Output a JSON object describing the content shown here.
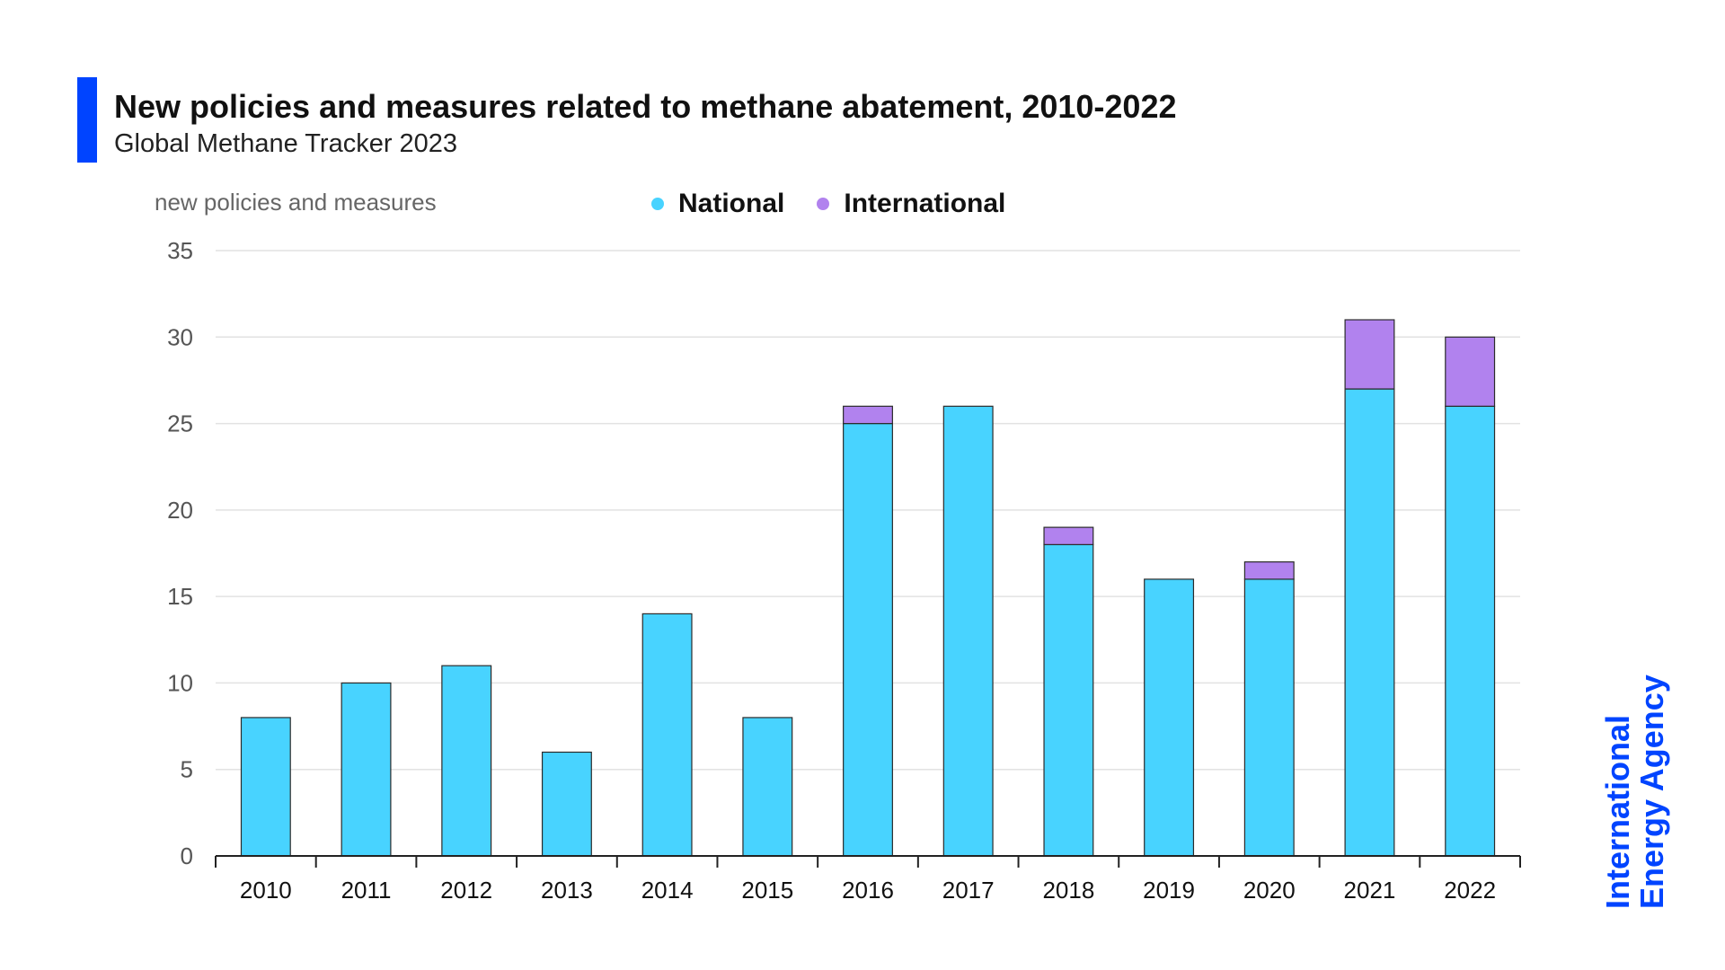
{
  "header": {
    "title": "New policies and measures related to methane abatement, 2010-2022",
    "subtitle": "Global Methane Tracker 2023"
  },
  "logo": {
    "line1": "International",
    "line2": "Energy Agency",
    "color": "#0044ff"
  },
  "chart_data": {
    "type": "bar",
    "stacked": true,
    "title": "New policies and measures related to methane abatement, 2010-2022",
    "ylabel": "new policies and measures",
    "xlabel": "",
    "categories": [
      "2010",
      "2011",
      "2012",
      "2013",
      "2014",
      "2015",
      "2016",
      "2017",
      "2018",
      "2019",
      "2020",
      "2021",
      "2022"
    ],
    "series": [
      {
        "name": "National",
        "color": "#48d3ff",
        "values": [
          8,
          10,
          11,
          6,
          14,
          8,
          25,
          26,
          18,
          16,
          16,
          27,
          26
        ]
      },
      {
        "name": "International",
        "color": "#b182ee",
        "values": [
          0,
          0,
          0,
          0,
          0,
          0,
          1,
          0,
          1,
          0,
          1,
          4,
          4
        ]
      }
    ],
    "ylim": [
      0,
      35
    ],
    "yticks": [
      "0",
      "5",
      "10",
      "15",
      "20",
      "25",
      "30",
      "35"
    ],
    "grid": true,
    "legend": "top"
  }
}
